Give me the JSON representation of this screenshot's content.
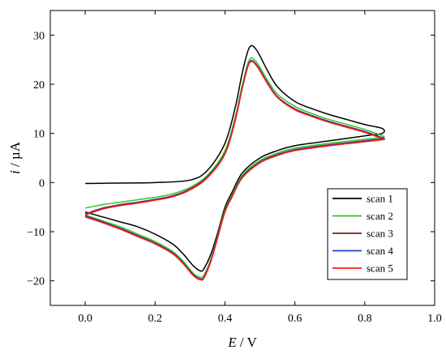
{
  "chart_data": {
    "type": "line",
    "x_axis": {
      "var": "E",
      "unit": "V",
      "sep": " / ",
      "range": [
        -0.1,
        1.0
      ],
      "ticks": [
        0.0,
        0.2,
        0.4,
        0.6,
        0.8,
        1.0
      ],
      "tick_labels": [
        "0.0",
        "0.2",
        "0.4",
        "0.6",
        "0.8",
        "1.0"
      ]
    },
    "y_axis": {
      "var": "i",
      "unit": "µA",
      "sep": " / ",
      "range": [
        -25,
        35
      ],
      "ticks": [
        -20,
        -10,
        0,
        10,
        20,
        30
      ],
      "tick_labels": [
        "−20",
        "−10",
        "0",
        "10",
        "20",
        "30"
      ]
    },
    "grid": false,
    "legend_position": "bottom-right",
    "series": [
      {
        "name": "scan 1",
        "color": "#000000",
        "forward": [
          [
            0.0,
            -0.2
          ],
          [
            0.1,
            -0.1
          ],
          [
            0.2,
            0.0
          ],
          [
            0.3,
            0.5
          ],
          [
            0.35,
            2.5
          ],
          [
            0.4,
            8.0
          ],
          [
            0.43,
            15.5
          ],
          [
            0.45,
            22.5
          ],
          [
            0.47,
            27.5
          ],
          [
            0.49,
            27.0
          ],
          [
            0.52,
            23.0
          ],
          [
            0.55,
            19.5
          ],
          [
            0.6,
            16.5
          ],
          [
            0.65,
            15.0
          ],
          [
            0.7,
            13.8
          ],
          [
            0.75,
            12.8
          ],
          [
            0.8,
            11.8
          ],
          [
            0.85,
            11.0
          ]
        ],
        "reverse": [
          [
            0.85,
            10.0
          ],
          [
            0.8,
            9.5
          ],
          [
            0.75,
            9.0
          ],
          [
            0.7,
            8.5
          ],
          [
            0.6,
            7.5
          ],
          [
            0.55,
            6.5
          ],
          [
            0.5,
            5.0
          ],
          [
            0.45,
            2.0
          ],
          [
            0.42,
            -2.0
          ],
          [
            0.4,
            -5.0
          ],
          [
            0.38,
            -10.0
          ],
          [
            0.36,
            -14.5
          ],
          [
            0.34,
            -17.5
          ],
          [
            0.33,
            -18.0
          ],
          [
            0.31,
            -17.0
          ],
          [
            0.28,
            -14.5
          ],
          [
            0.25,
            -12.5
          ],
          [
            0.2,
            -10.5
          ],
          [
            0.15,
            -9.0
          ],
          [
            0.1,
            -8.0
          ],
          [
            0.05,
            -7.0
          ],
          [
            0.0,
            -6.0
          ]
        ]
      },
      {
        "name": "scan 2",
        "color": "#22cc22",
        "forward": [
          [
            0.0,
            -5.2
          ],
          [
            0.05,
            -4.5
          ],
          [
            0.1,
            -4.0
          ],
          [
            0.15,
            -3.5
          ],
          [
            0.2,
            -3.0
          ],
          [
            0.25,
            -2.3
          ],
          [
            0.3,
            -1.0
          ],
          [
            0.35,
            1.5
          ],
          [
            0.4,
            6.5
          ],
          [
            0.43,
            13.5
          ],
          [
            0.45,
            20.0
          ],
          [
            0.47,
            25.0
          ],
          [
            0.49,
            24.5
          ],
          [
            0.52,
            21.0
          ],
          [
            0.55,
            18.0
          ],
          [
            0.6,
            15.5
          ],
          [
            0.65,
            14.0
          ],
          [
            0.7,
            12.8
          ],
          [
            0.75,
            11.8
          ],
          [
            0.8,
            10.8
          ],
          [
            0.85,
            9.5
          ]
        ],
        "reverse": [
          [
            0.85,
            9.2
          ],
          [
            0.8,
            8.8
          ],
          [
            0.75,
            8.4
          ],
          [
            0.7,
            8.0
          ],
          [
            0.6,
            7.0
          ],
          [
            0.55,
            6.0
          ],
          [
            0.5,
            4.5
          ],
          [
            0.45,
            1.5
          ],
          [
            0.42,
            -2.5
          ],
          [
            0.4,
            -5.5
          ],
          [
            0.38,
            -10.5
          ],
          [
            0.36,
            -15.5
          ],
          [
            0.34,
            -18.8
          ],
          [
            0.33,
            -19.3
          ],
          [
            0.31,
            -18.5
          ],
          [
            0.28,
            -16.0
          ],
          [
            0.25,
            -14.0
          ],
          [
            0.2,
            -12.0
          ],
          [
            0.15,
            -10.5
          ],
          [
            0.1,
            -9.0
          ],
          [
            0.05,
            -7.8
          ],
          [
            0.0,
            -6.6
          ]
        ]
      },
      {
        "name": "scan 3",
        "color": "#8b1a1a",
        "forward": [
          [
            0.0,
            -6.4
          ],
          [
            0.05,
            -5.2
          ],
          [
            0.1,
            -4.5
          ],
          [
            0.15,
            -4.0
          ],
          [
            0.2,
            -3.4
          ],
          [
            0.25,
            -2.7
          ],
          [
            0.3,
            -1.3
          ],
          [
            0.35,
            1.2
          ],
          [
            0.4,
            6.0
          ],
          [
            0.43,
            13.0
          ],
          [
            0.45,
            19.5
          ],
          [
            0.47,
            24.5
          ],
          [
            0.49,
            24.0
          ],
          [
            0.52,
            20.5
          ],
          [
            0.55,
            17.5
          ],
          [
            0.6,
            15.0
          ],
          [
            0.65,
            13.6
          ],
          [
            0.7,
            12.4
          ],
          [
            0.75,
            11.4
          ],
          [
            0.8,
            10.4
          ],
          [
            0.85,
            9.1
          ]
        ],
        "reverse": [
          [
            0.85,
            8.9
          ],
          [
            0.8,
            8.5
          ],
          [
            0.75,
            8.1
          ],
          [
            0.7,
            7.7
          ],
          [
            0.6,
            6.7
          ],
          [
            0.55,
            5.7
          ],
          [
            0.5,
            4.2
          ],
          [
            0.45,
            1.2
          ],
          [
            0.42,
            -2.8
          ],
          [
            0.4,
            -5.8
          ],
          [
            0.38,
            -10.8
          ],
          [
            0.36,
            -15.8
          ],
          [
            0.34,
            -19.2
          ],
          [
            0.33,
            -19.6
          ],
          [
            0.31,
            -18.8
          ],
          [
            0.28,
            -16.3
          ],
          [
            0.25,
            -14.3
          ],
          [
            0.2,
            -12.3
          ],
          [
            0.15,
            -10.8
          ],
          [
            0.1,
            -9.3
          ],
          [
            0.05,
            -8.0
          ],
          [
            0.0,
            -6.8
          ]
        ]
      },
      {
        "name": "scan 4",
        "color": "#1f3fd6",
        "forward": [
          [
            0.0,
            -6.5
          ],
          [
            0.05,
            -5.3
          ],
          [
            0.1,
            -4.6
          ],
          [
            0.15,
            -4.1
          ],
          [
            0.2,
            -3.5
          ],
          [
            0.25,
            -2.8
          ],
          [
            0.3,
            -1.4
          ],
          [
            0.35,
            1.1
          ],
          [
            0.4,
            5.9
          ],
          [
            0.43,
            12.9
          ],
          [
            0.45,
            19.4
          ],
          [
            0.47,
            24.4
          ],
          [
            0.49,
            23.9
          ],
          [
            0.52,
            20.4
          ],
          [
            0.55,
            17.4
          ],
          [
            0.6,
            14.9
          ],
          [
            0.65,
            13.5
          ],
          [
            0.7,
            12.3
          ],
          [
            0.75,
            11.3
          ],
          [
            0.8,
            10.3
          ],
          [
            0.85,
            9.0
          ]
        ],
        "reverse": [
          [
            0.85,
            8.8
          ],
          [
            0.8,
            8.4
          ],
          [
            0.75,
            8.0
          ],
          [
            0.7,
            7.6
          ],
          [
            0.6,
            6.6
          ],
          [
            0.55,
            5.6
          ],
          [
            0.5,
            4.1
          ],
          [
            0.45,
            1.1
          ],
          [
            0.42,
            -2.9
          ],
          [
            0.4,
            -5.9
          ],
          [
            0.38,
            -10.9
          ],
          [
            0.36,
            -15.9
          ],
          [
            0.34,
            -19.3
          ],
          [
            0.33,
            -19.7
          ],
          [
            0.31,
            -18.9
          ],
          [
            0.28,
            -16.4
          ],
          [
            0.25,
            -14.4
          ],
          [
            0.2,
            -12.4
          ],
          [
            0.15,
            -10.9
          ],
          [
            0.1,
            -9.4
          ],
          [
            0.05,
            -8.1
          ],
          [
            0.0,
            -6.9
          ]
        ]
      },
      {
        "name": "scan 5",
        "color": "#ff1a1a",
        "forward": [
          [
            0.0,
            -6.6
          ],
          [
            0.05,
            -5.4
          ],
          [
            0.1,
            -4.7
          ],
          [
            0.15,
            -4.2
          ],
          [
            0.2,
            -3.6
          ],
          [
            0.25,
            -2.9
          ],
          [
            0.3,
            -1.5
          ],
          [
            0.35,
            1.0
          ],
          [
            0.4,
            5.8
          ],
          [
            0.43,
            12.8
          ],
          [
            0.45,
            19.3
          ],
          [
            0.47,
            24.3
          ],
          [
            0.49,
            23.8
          ],
          [
            0.52,
            20.3
          ],
          [
            0.55,
            17.3
          ],
          [
            0.6,
            14.8
          ],
          [
            0.65,
            13.4
          ],
          [
            0.7,
            12.2
          ],
          [
            0.75,
            11.2
          ],
          [
            0.8,
            10.2
          ],
          [
            0.85,
            8.9
          ]
        ],
        "reverse": [
          [
            0.85,
            8.7
          ],
          [
            0.8,
            8.3
          ],
          [
            0.75,
            7.9
          ],
          [
            0.7,
            7.5
          ],
          [
            0.6,
            6.5
          ],
          [
            0.55,
            5.5
          ],
          [
            0.5,
            4.0
          ],
          [
            0.45,
            1.0
          ],
          [
            0.42,
            -3.0
          ],
          [
            0.4,
            -6.0
          ],
          [
            0.38,
            -11.0
          ],
          [
            0.36,
            -16.0
          ],
          [
            0.34,
            -19.4
          ],
          [
            0.33,
            -19.8
          ],
          [
            0.31,
            -19.0
          ],
          [
            0.28,
            -16.5
          ],
          [
            0.25,
            -14.5
          ],
          [
            0.2,
            -12.5
          ],
          [
            0.15,
            -11.0
          ],
          [
            0.1,
            -9.5
          ],
          [
            0.05,
            -8.2
          ],
          [
            0.0,
            -7.0
          ]
        ]
      }
    ]
  }
}
